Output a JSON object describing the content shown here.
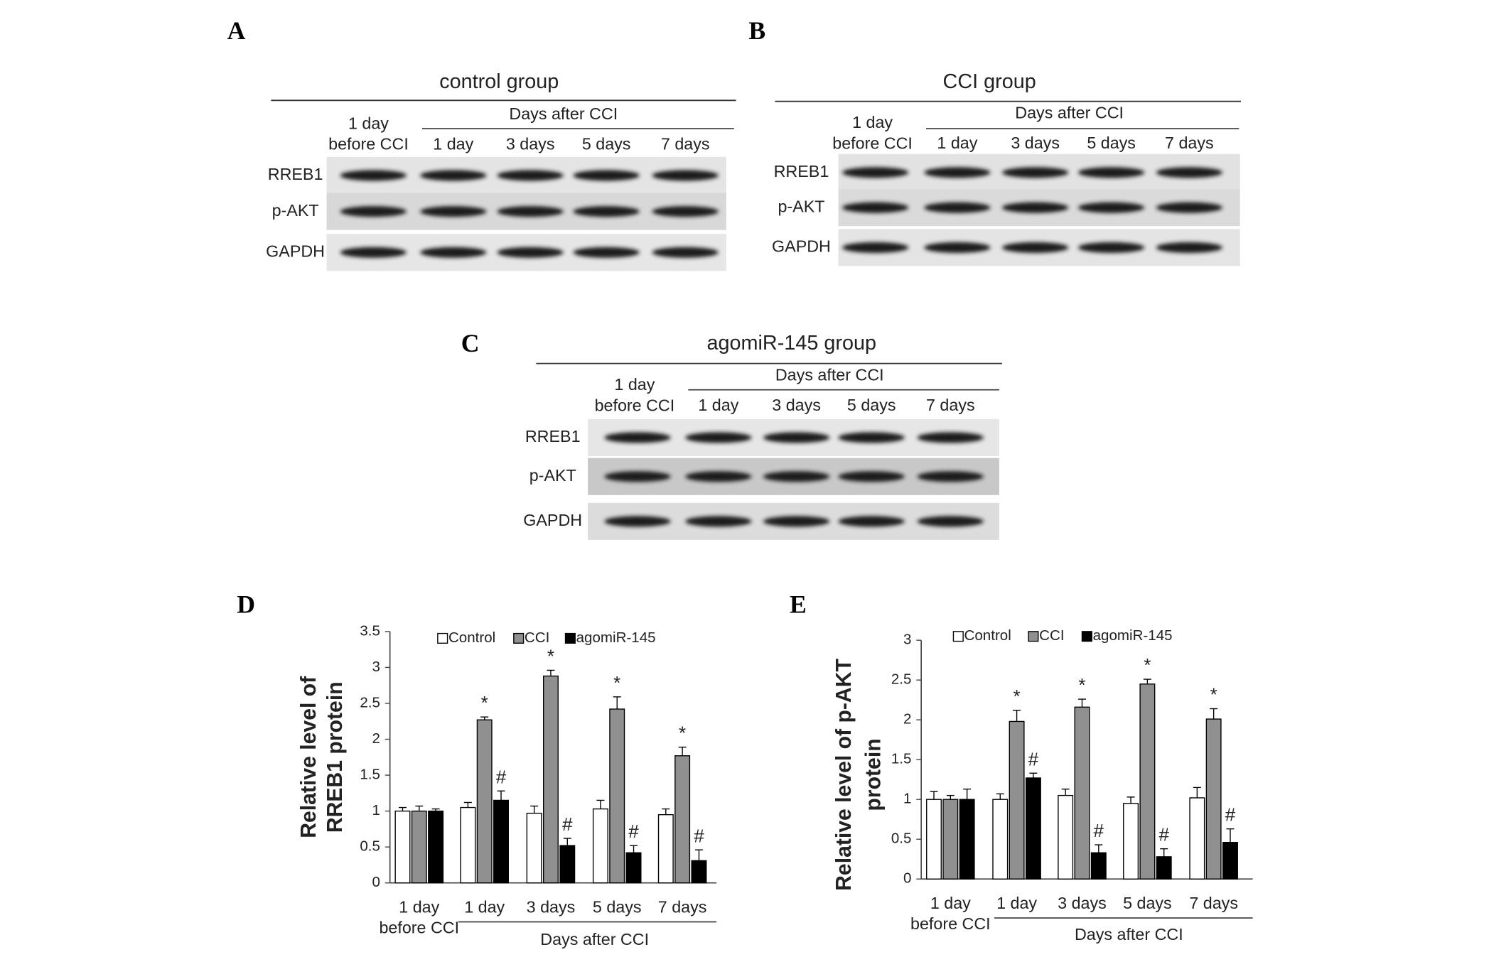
{
  "blots": [
    {
      "letter": "A",
      "title": "control group",
      "first_lane": "1 day\nbefore CCI",
      "group_label": "Days after CCI",
      "lanes": [
        "1 day",
        "3 days",
        "5 days",
        "7 days"
      ],
      "rows": [
        "RREB1",
        "p-AKT",
        "GAPDH"
      ]
    },
    {
      "letter": "B",
      "title": "CCI group",
      "first_lane": "1 day\nbefore CCI",
      "group_label": "Days after CCI",
      "lanes": [
        "1 day",
        "3 days",
        "5 days",
        "7 days"
      ],
      "rows": [
        "RREB1",
        "p-AKT",
        "GAPDH"
      ]
    },
    {
      "letter": "C",
      "title": "agomiR-145 group",
      "first_lane": "1 day\nbefore CCI",
      "group_label": "Days after CCI",
      "lanes": [
        "1 day",
        "3 days",
        "5 days",
        "7 days"
      ],
      "rows": [
        "RREB1",
        "p-AKT",
        "GAPDH"
      ]
    }
  ],
  "chart_data": [
    {
      "type": "bar",
      "letter": "D",
      "ylabel": [
        "Relative level of",
        "RREB1 protein"
      ],
      "categories": [
        "1 day\nbefore CCI",
        "1 day",
        "3 days",
        "5 days",
        "7 days"
      ],
      "group_label": "Days after CCI",
      "ylim": [
        0,
        3.5
      ],
      "yticks": [
        0,
        0.5,
        1,
        1.5,
        2,
        2.5,
        3,
        3.5
      ],
      "grid": false,
      "series": [
        {
          "name": "Control",
          "color": "#ffffff",
          "values": [
            1.0,
            1.05,
            0.97,
            1.03,
            0.95
          ],
          "errors": [
            0.05,
            0.07,
            0.1,
            0.12,
            0.08
          ],
          "labels": [
            null,
            null,
            null,
            null,
            null
          ]
        },
        {
          "name": "CCI",
          "color": "#909090",
          "values": [
            1.0,
            2.27,
            2.88,
            2.42,
            1.77
          ],
          "errors": [
            0.07,
            0.04,
            0.08,
            0.17,
            0.12
          ],
          "labels": [
            null,
            "*",
            "*",
            "*",
            "*"
          ]
        },
        {
          "name": "agomiR-145",
          "color": "#000000",
          "values": [
            1.0,
            1.15,
            0.52,
            0.42,
            0.31
          ],
          "errors": [
            0.03,
            0.13,
            0.1,
            0.1,
            0.15
          ],
          "labels": [
            null,
            "#",
            "#",
            "#",
            "#"
          ]
        }
      ]
    },
    {
      "type": "bar",
      "letter": "E",
      "ylabel": [
        "Relative level of p-AKT",
        "protein"
      ],
      "categories": [
        "1 day\nbefore CCI",
        "1 day",
        "3 days",
        "5 days",
        "7 days"
      ],
      "group_label": "Days after CCI",
      "ylim": [
        0,
        3
      ],
      "yticks": [
        0,
        0.5,
        1,
        1.5,
        2,
        2.5,
        3
      ],
      "grid": false,
      "series": [
        {
          "name": "Control",
          "color": "#ffffff",
          "values": [
            1.0,
            1.0,
            1.05,
            0.95,
            1.02
          ],
          "errors": [
            0.1,
            0.07,
            0.08,
            0.08,
            0.13
          ],
          "labels": [
            null,
            null,
            null,
            null,
            null
          ]
        },
        {
          "name": "CCI",
          "color": "#909090",
          "values": [
            1.0,
            1.98,
            2.16,
            2.45,
            2.01
          ],
          "errors": [
            0.05,
            0.14,
            0.1,
            0.06,
            0.13
          ],
          "labels": [
            null,
            "*",
            "*",
            "*",
            "*"
          ]
        },
        {
          "name": "agomiR-145",
          "color": "#000000",
          "values": [
            1.0,
            1.27,
            0.33,
            0.28,
            0.46
          ],
          "errors": [
            0.13,
            0.06,
            0.1,
            0.1,
            0.17
          ],
          "labels": [
            null,
            "#",
            "#",
            "#",
            "#"
          ]
        }
      ]
    }
  ]
}
